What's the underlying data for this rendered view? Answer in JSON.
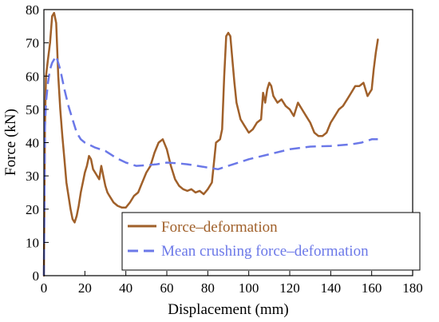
{
  "chart_data": {
    "type": "line",
    "xlabel": "Displacement (mm)",
    "ylabel": "Force (kN)",
    "xlim": [
      0,
      180
    ],
    "ylim": [
      0,
      80
    ],
    "xticks": [
      0,
      20,
      40,
      60,
      80,
      100,
      120,
      140,
      160,
      180
    ],
    "yticks": [
      0,
      10,
      20,
      30,
      40,
      50,
      60,
      70,
      80
    ],
    "grid": false,
    "legend_position": "bottom-right",
    "series": [
      {
        "name": "Force–deformation",
        "color": "#a0602a",
        "style": "solid",
        "x": [
          0,
          0.5,
          1,
          2,
          3,
          4,
          5,
          6,
          7,
          8,
          9,
          10,
          11,
          12,
          13,
          14,
          15,
          16,
          17,
          18,
          19,
          20,
          21,
          22,
          23,
          24,
          25,
          26,
          27,
          28,
          29,
          30,
          31,
          32,
          34,
          36,
          38,
          40,
          42,
          44,
          46,
          48,
          50,
          52,
          54,
          56,
          58,
          60,
          62,
          64,
          66,
          68,
          70,
          72,
          74,
          76,
          78,
          80,
          82,
          84,
          86,
          87,
          88,
          89,
          90,
          91,
          92,
          93,
          94,
          96,
          98,
          100,
          102,
          104,
          106,
          107,
          108,
          109,
          110,
          111,
          112,
          114,
          116,
          118,
          120,
          122,
          124,
          126,
          128,
          130,
          132,
          134,
          136,
          138,
          140,
          142,
          144,
          146,
          148,
          150,
          152,
          154,
          156,
          158,
          160,
          161,
          162,
          163
        ],
        "y": [
          0,
          45,
          60,
          65,
          70,
          78,
          79,
          76,
          60,
          50,
          42,
          35,
          28,
          24,
          20,
          17,
          16,
          18,
          21,
          25,
          28,
          31,
          33,
          36,
          35,
          32,
          31,
          30,
          29,
          33,
          30,
          27,
          25,
          24,
          22,
          21,
          20.5,
          20.5,
          22,
          24,
          25,
          28,
          31,
          33,
          37,
          40,
          41,
          38,
          33,
          29,
          27,
          26,
          25.5,
          26,
          25,
          25.5,
          24.5,
          26,
          28,
          40,
          41,
          44,
          60,
          72,
          73,
          72,
          65,
          58,
          52,
          47,
          45,
          43,
          44,
          46,
          47,
          55,
          52,
          56,
          58,
          57,
          54,
          52,
          53,
          51,
          50,
          48,
          52,
          50,
          48,
          46,
          43,
          42,
          42,
          43,
          46,
          48,
          50,
          51,
          53,
          55,
          57,
          57,
          58,
          54,
          56,
          62,
          67,
          71
        ]
      },
      {
        "name": "Mean crushing force–deformation",
        "color": "#6b78e8",
        "style": "dashed",
        "x": [
          0,
          0.5,
          1,
          2,
          3,
          4,
          5,
          6,
          8,
          10,
          12,
          14,
          16,
          18,
          20,
          25,
          30,
          35,
          40,
          45,
          50,
          55,
          60,
          65,
          70,
          75,
          80,
          85,
          90,
          95,
          100,
          110,
          120,
          130,
          140,
          150,
          155,
          160,
          163
        ],
        "y": [
          0,
          45,
          52,
          58,
          62,
          64,
          65,
          66,
          62,
          56,
          51,
          47,
          43,
          41,
          40,
          38.5,
          37.5,
          35.5,
          34,
          33,
          33.2,
          33.5,
          34,
          33.8,
          33.5,
          33,
          32.5,
          32,
          33,
          34,
          35,
          36.5,
          38,
          38.8,
          39,
          39.5,
          40,
          41,
          41
        ]
      }
    ]
  }
}
